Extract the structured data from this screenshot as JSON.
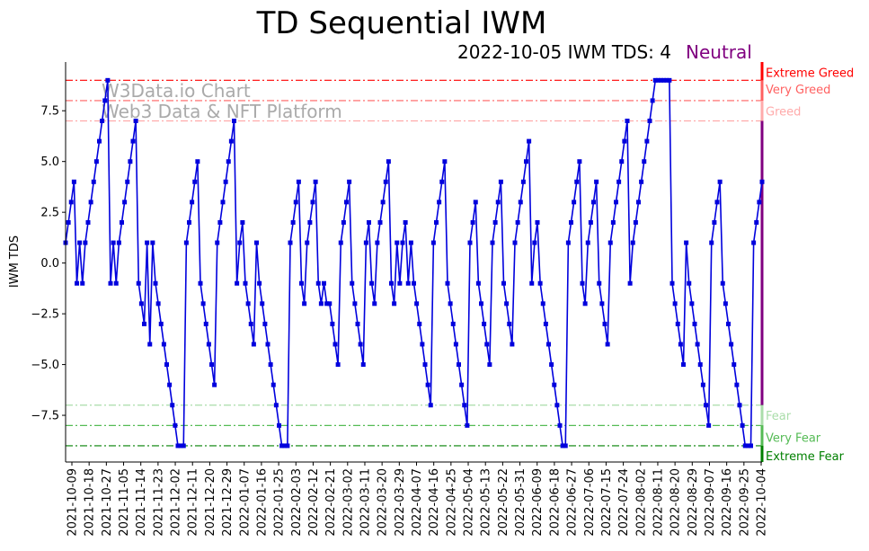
{
  "chart_data": {
    "type": "line",
    "title": "TD Sequential IWM",
    "subtitle": "2022-10-05 IWM TDS: 4",
    "sentiment": "Neutral",
    "sentiment_color": "#800080",
    "ylabel": "IWM TDS",
    "xlabel": "",
    "ylim": [
      -9.8,
      9.9
    ],
    "yticks": [
      -7.5,
      -5.0,
      -2.5,
      0.0,
      2.5,
      5.0,
      7.5
    ],
    "ytick_labels": [
      "−7.5",
      "−5.0",
      "−2.5",
      "0.0",
      "2.5",
      "5.0",
      "7.5"
    ],
    "xtick_labels": [
      "2021-10-09",
      "2021-10-18",
      "2021-10-27",
      "2021-11-05",
      "2021-11-14",
      "2021-11-23",
      "2021-12-02",
      "2021-12-11",
      "2021-12-20",
      "2021-12-29",
      "2022-01-07",
      "2022-01-16",
      "2022-01-25",
      "2022-02-03",
      "2022-02-12",
      "2022-02-21",
      "2022-03-02",
      "2022-03-11",
      "2022-03-20",
      "2022-03-29",
      "2022-04-07",
      "2022-04-16",
      "2022-04-25",
      "2022-05-04",
      "2022-05-13",
      "2022-05-22",
      "2022-05-31",
      "2022-06-09",
      "2022-06-18",
      "2022-06-27",
      "2022-07-06",
      "2022-07-15",
      "2022-07-24",
      "2022-08-02",
      "2022-08-11",
      "2022-08-20",
      "2022-08-29",
      "2022-09-07",
      "2022-09-16",
      "2022-09-25",
      "2022-10-04"
    ],
    "grid": false,
    "line_color": "#0000dd",
    "series": [
      {
        "values": [
          1,
          2,
          3,
          4,
          -1,
          1,
          -1,
          1,
          2,
          3,
          4,
          5,
          6,
          7,
          8,
          9,
          -1,
          1,
          -1,
          1,
          2,
          3,
          4,
          5,
          6,
          7,
          -1,
          -2,
          -3,
          1,
          -4,
          1,
          -1,
          -2,
          -3,
          -4,
          -5,
          -6,
          -7,
          -8,
          -9,
          -9,
          -9,
          1,
          2,
          3,
          4,
          5,
          -1,
          -2,
          -3,
          -4,
          -5,
          -6,
          1,
          2,
          3,
          4,
          5,
          6,
          7,
          -1,
          1,
          2,
          -1,
          -2,
          -3,
          -4,
          1,
          -1,
          -2,
          -3,
          -4,
          -5,
          -6,
          -7,
          -8,
          -9,
          -9,
          -9,
          1,
          2,
          3,
          4,
          -1,
          -2,
          1,
          2,
          3,
          4,
          -1,
          -2,
          -1,
          -2,
          -2,
          -3,
          -4,
          -5,
          1,
          2,
          3,
          4,
          -1,
          -2,
          -3,
          -4,
          -5,
          1,
          2,
          -1,
          -2,
          1,
          2,
          3,
          4,
          5,
          -1,
          -2,
          1,
          -1,
          1,
          2,
          -1,
          1,
          -1,
          -2,
          -3,
          -4,
          -5,
          -6,
          -7,
          1,
          2,
          3,
          4,
          5,
          -1,
          -2,
          -3,
          -4,
          -5,
          -6,
          -7,
          -8,
          1,
          2,
          3,
          -1,
          -2,
          -3,
          -4,
          -5,
          1,
          2,
          3,
          4,
          -1,
          -2,
          -3,
          -4,
          1,
          2,
          3,
          4,
          5,
          6,
          -1,
          1,
          2,
          -1,
          -2,
          -3,
          -4,
          -5,
          -6,
          -7,
          -8,
          -9,
          -9,
          1,
          2,
          3,
          4,
          5,
          -1,
          -2,
          1,
          2,
          3,
          4,
          -1,
          -2,
          -3,
          -4,
          1,
          2,
          3,
          4,
          5,
          6,
          7,
          -1,
          1,
          2,
          3,
          4,
          5,
          6,
          7,
          8,
          9,
          9,
          9,
          9,
          9,
          9,
          -1,
          -2,
          -3,
          -4,
          -5,
          1,
          -1,
          -2,
          -3,
          -4,
          -5,
          -6,
          -7,
          -8,
          1,
          2,
          3,
          4,
          -1,
          -2,
          -3,
          -4,
          -5,
          -6,
          -7,
          -8,
          -9,
          -9,
          -9,
          1,
          2,
          3,
          4
        ]
      }
    ],
    "reference_lines": [
      {
        "value": 9,
        "label": "Extreme Greed",
        "color": "#ff0000"
      },
      {
        "value": 8,
        "label": "Very Greed",
        "color": "#ff6060"
      },
      {
        "value": 7,
        "label": "Greed",
        "color": "#ffaaaa"
      },
      {
        "value": -7,
        "label": "Fear",
        "color": "#aaddaa"
      },
      {
        "value": -8,
        "label": "Very Fear",
        "color": "#55bb55"
      },
      {
        "value": -9,
        "label": "Extreme Fear",
        "color": "#008000"
      }
    ],
    "watermark": [
      "W3Data.io Chart",
      "Web3 Data & NFT Platform"
    ]
  }
}
